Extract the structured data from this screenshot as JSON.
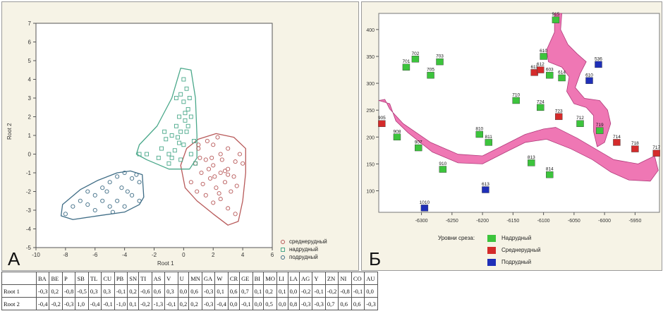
{
  "panel_a": {
    "letter": "А",
    "x_axis_title": "Root 1",
    "y_axis_title": "Root 2",
    "legend": [
      {
        "label": "среднерудный",
        "color": "#b85a5a",
        "marker": "circle"
      },
      {
        "label": "надрудный",
        "color": "#4aa88a",
        "marker": "square"
      },
      {
        "label": "подрудный",
        "color": "#3f6d86",
        "marker": "circle"
      }
    ]
  },
  "chart_data": {
    "type": "scatter",
    "xlabel": "Root 1",
    "ylabel": "Root 2",
    "xlim": [
      -10,
      6
    ],
    "ylim": [
      -5,
      7
    ],
    "x_ticks": [
      "-10",
      "-8",
      "-6",
      "-4",
      "-2",
      "0",
      "2",
      "4",
      "6"
    ],
    "y_ticks": [
      "-5",
      "-4",
      "-3",
      "-2",
      "-1",
      "0",
      "1",
      "2",
      "3",
      "4",
      "5",
      "6",
      "7"
    ],
    "series": [
      {
        "name": "среднерудный",
        "color": "#b85a5a",
        "marker": "circle",
        "points": [
          [
            0.5,
            -1.5
          ],
          [
            1.0,
            0.3
          ],
          [
            1.5,
            -0.3
          ],
          [
            2.0,
            -0.6
          ],
          [
            2.5,
            0.0
          ],
          [
            3.0,
            -0.8
          ],
          [
            3.5,
            -0.4
          ],
          [
            1.2,
            -1.0
          ],
          [
            1.8,
            -1.3
          ],
          [
            2.2,
            -1.8
          ],
          [
            2.8,
            -1.5
          ],
          [
            3.2,
            -2.0
          ],
          [
            0.8,
            -0.5
          ],
          [
            2.0,
            0.5
          ],
          [
            3.0,
            0.3
          ],
          [
            3.8,
            0.0
          ],
          [
            4.0,
            -0.5
          ],
          [
            2.5,
            -1.0
          ],
          [
            1.5,
            -2.2
          ],
          [
            2.0,
            -2.6
          ],
          [
            2.5,
            -2.4
          ],
          [
            3.0,
            -2.9
          ],
          [
            3.5,
            -3.2
          ],
          [
            1.0,
            0.5
          ],
          [
            1.6,
            0.7
          ],
          [
            2.6,
            -0.3
          ],
          [
            3.4,
            -1.2
          ],
          [
            1.9,
            -0.2
          ],
          [
            0.9,
            -2.0
          ],
          [
            1.3,
            -1.6
          ],
          [
            2.4,
            -2.1
          ],
          [
            3.6,
            -1.7
          ],
          [
            2.8,
            -0.9
          ],
          [
            1.1,
            -0.2
          ],
          [
            2.1,
            -1.2
          ],
          [
            3.0,
            -1.1
          ],
          [
            2.3,
            0.9
          ],
          [
            1.7,
            -0.8
          ]
        ]
      },
      {
        "name": "надрудный",
        "color": "#4aa88a",
        "marker": "square",
        "points": [
          [
            0.0,
            4.0
          ],
          [
            0.2,
            3.5
          ],
          [
            -0.2,
            3.2
          ],
          [
            0.0,
            2.8
          ],
          [
            0.3,
            2.4
          ],
          [
            -0.3,
            2.0
          ],
          [
            0.1,
            1.8
          ],
          [
            -0.5,
            1.5
          ],
          [
            0.2,
            1.2
          ],
          [
            -0.8,
            1.0
          ],
          [
            -1.2,
            0.8
          ],
          [
            -0.3,
            0.6
          ],
          [
            0.0,
            0.5
          ],
          [
            -1.5,
            0.3
          ],
          [
            -0.6,
            0.2
          ],
          [
            -1.0,
            0.0
          ],
          [
            0.5,
            0.0
          ],
          [
            -2.5,
            0.0
          ],
          [
            -3.0,
            0.0
          ],
          [
            -0.2,
            -0.3
          ],
          [
            0.8,
            -0.5
          ],
          [
            -1.0,
            -0.5
          ],
          [
            -1.3,
            1.2
          ],
          [
            0.5,
            2.0
          ],
          [
            -0.5,
            3.0
          ],
          [
            0.3,
            1.5
          ],
          [
            -0.8,
            -0.2
          ],
          [
            -0.2,
            1.2
          ],
          [
            0.7,
            0.7
          ],
          [
            -1.7,
            -0.2
          ],
          [
            0.1,
            2.2
          ],
          [
            -0.4,
            0.9
          ],
          [
            0.4,
            3.0
          ]
        ]
      },
      {
        "name": "подрудный",
        "color": "#3f6d86",
        "marker": "circle",
        "points": [
          [
            -8.0,
            -3.2
          ],
          [
            -7.5,
            -2.8
          ],
          [
            -7.0,
            -2.5
          ],
          [
            -6.5,
            -2.0
          ],
          [
            -6.0,
            -2.2
          ],
          [
            -5.5,
            -1.8
          ],
          [
            -5.0,
            -1.5
          ],
          [
            -4.5,
            -1.2
          ],
          [
            -4.0,
            -1.0
          ],
          [
            -3.5,
            -1.3
          ],
          [
            -3.0,
            -1.5
          ],
          [
            -6.0,
            -3.0
          ],
          [
            -5.0,
            -2.8
          ],
          [
            -4.5,
            -2.5
          ],
          [
            -4.0,
            -2.8
          ],
          [
            -3.5,
            -2.2
          ],
          [
            -3.0,
            -2.5
          ],
          [
            -5.5,
            -2.5
          ],
          [
            -6.5,
            -2.7
          ],
          [
            -4.2,
            -1.8
          ],
          [
            -3.8,
            -2.0
          ],
          [
            -5.2,
            -2.0
          ],
          [
            -3.2,
            -1.1
          ],
          [
            -4.8,
            -3.1
          ]
        ]
      }
    ],
    "hulls": [
      {
        "name": "среднерудный",
        "color": "#b85a5a",
        "points": [
          [
            -0.2,
            -0.6
          ],
          [
            0.2,
            0.3
          ],
          [
            1.0,
            0.8
          ],
          [
            2.2,
            1.1
          ],
          [
            3.4,
            0.9
          ],
          [
            4.2,
            0.3
          ],
          [
            4.2,
            -1.0
          ],
          [
            4.0,
            -2.5
          ],
          [
            3.7,
            -3.6
          ],
          [
            3.0,
            -3.8
          ],
          [
            2.0,
            -3.2
          ],
          [
            0.9,
            -2.5
          ],
          [
            0.1,
            -1.8
          ]
        ]
      },
      {
        "name": "надрудный",
        "color": "#4aa88a",
        "points": [
          [
            -0.2,
            4.6
          ],
          [
            0.5,
            4.5
          ],
          [
            0.8,
            3.0
          ],
          [
            0.9,
            1.0
          ],
          [
            0.9,
            -0.2
          ],
          [
            0.4,
            -0.8
          ],
          [
            -1.0,
            -0.8
          ],
          [
            -2.5,
            -0.3
          ],
          [
            -3.2,
            0.0
          ],
          [
            -3.0,
            0.5
          ],
          [
            -1.8,
            1.5
          ],
          [
            -0.8,
            3.0
          ]
        ]
      },
      {
        "name": "подрудный",
        "color": "#3f6d86",
        "points": [
          [
            -8.3,
            -3.3
          ],
          [
            -8.2,
            -2.7
          ],
          [
            -7.0,
            -1.9
          ],
          [
            -5.8,
            -1.4
          ],
          [
            -4.5,
            -1.0
          ],
          [
            -3.6,
            -0.9
          ],
          [
            -2.8,
            -1.1
          ],
          [
            -2.7,
            -2.3
          ],
          [
            -3.0,
            -2.7
          ],
          [
            -4.0,
            -3.1
          ],
          [
            -5.8,
            -3.3
          ],
          [
            -7.5,
            -3.5
          ]
        ]
      }
    ]
  },
  "panel_b": {
    "letter": "Б",
    "legend_title": "Уровни среза:",
    "legend": [
      {
        "label": "Надрудный",
        "color": "#3cc43c"
      },
      {
        "label": "Среднерудный",
        "color": "#d42b2b"
      },
      {
        "label": "Подрудный",
        "color": "#1f2fb8"
      }
    ],
    "map": {
      "xlim": [
        -6370,
        -5910
      ],
      "ylim": [
        60,
        430
      ],
      "x_ticks": [
        "-6300",
        "-6250",
        "-6200",
        "-6150",
        "-6100",
        "-6050",
        "-6000",
        "-5950"
      ],
      "y_ticks": [
        "100",
        "150",
        "200",
        "250",
        "300",
        "350",
        "400"
      ],
      "samples": [
        {
          "id": "915",
          "x": -6080,
          "y": 418,
          "level": "Надрудный"
        },
        {
          "id": "701",
          "x": -6325,
          "y": 330,
          "level": "Надрудный"
        },
        {
          "id": "702",
          "x": -6310,
          "y": 345,
          "level": "Надрудный"
        },
        {
          "id": "703",
          "x": -6270,
          "y": 340,
          "level": "Надрудный"
        },
        {
          "id": "705",
          "x": -6285,
          "y": 315,
          "level": "Надрудный"
        },
        {
          "id": "610",
          "x": -6100,
          "y": 350,
          "level": "Надрудный"
        },
        {
          "id": "611",
          "x": -6115,
          "y": 320,
          "level": "Среднерудный"
        },
        {
          "id": "612",
          "x": -6105,
          "y": 325,
          "level": "Среднерудный"
        },
        {
          "id": "603",
          "x": -6090,
          "y": 315,
          "level": "Надрудный"
        },
        {
          "id": "614",
          "x": -6070,
          "y": 310,
          "level": "Надрудный"
        },
        {
          "id": "536",
          "x": -6010,
          "y": 335,
          "level": "Подрудный"
        },
        {
          "id": "610",
          "x": -6025,
          "y": 305,
          "level": "Подрудный"
        },
        {
          "id": "710",
          "x": -6145,
          "y": 268,
          "level": "Надрудный"
        },
        {
          "id": "724",
          "x": -6105,
          "y": 255,
          "level": "Надрудный"
        },
        {
          "id": "723",
          "x": -6075,
          "y": 238,
          "level": "Среднерудный"
        },
        {
          "id": "712",
          "x": -6040,
          "y": 225,
          "level": "Надрудный"
        },
        {
          "id": "719",
          "x": -6008,
          "y": 212,
          "level": "Надрудный"
        },
        {
          "id": "714",
          "x": -5980,
          "y": 190,
          "level": "Среднерудный"
        },
        {
          "id": "718",
          "x": -5950,
          "y": 178,
          "level": "Среднерудный"
        },
        {
          "id": "717",
          "x": -5915,
          "y": 170,
          "level": "Среднерудный"
        },
        {
          "id": "905",
          "x": -6365,
          "y": 225,
          "level": "Среднерудный"
        },
        {
          "id": "908",
          "x": -6340,
          "y": 200,
          "level": "Надрудный"
        },
        {
          "id": "907",
          "x": -6305,
          "y": 180,
          "level": "Надрудный"
        },
        {
          "id": "910",
          "x": -6265,
          "y": 140,
          "level": "Надрудный"
        },
        {
          "id": "810",
          "x": -6205,
          "y": 205,
          "level": "Надрудный"
        },
        {
          "id": "811",
          "x": -6190,
          "y": 190,
          "level": "Надрудный"
        },
        {
          "id": "813",
          "x": -6120,
          "y": 152,
          "level": "Надрудный"
        },
        {
          "id": "814",
          "x": -6090,
          "y": 130,
          "level": "Надрудный"
        },
        {
          "id": "613",
          "x": -6195,
          "y": 102,
          "level": "Подрудный"
        },
        {
          "id": "1010",
          "x": -6295,
          "y": 68,
          "level": "Подрудный"
        }
      ]
    }
  },
  "table": {
    "headers": [
      "",
      "BA",
      "BE",
      "P",
      "SB",
      "TL",
      "CU",
      "PB",
      "SN",
      "TI",
      "AS",
      "V",
      "U",
      "MN",
      "GA",
      "W",
      "CR",
      "GE",
      "BI",
      "MO",
      "LI",
      "LA",
      "AG",
      "Y",
      "ZN",
      "NI",
      "CO",
      "AU"
    ],
    "rows": [
      [
        "Root 1",
        "-0,3",
        "0,2",
        "-0,8",
        "-0,5",
        "0,3",
        "0,3",
        "-0,1",
        "0,2",
        "-0,6",
        "0,6",
        "0,3",
        "0,0",
        "0,6",
        "-0,3",
        "0,1",
        "0,6",
        "0,7",
        "0,1",
        "0,2",
        "0,1",
        "0,0",
        "-0,2",
        "-0,1",
        "-0,2",
        "-0,8",
        "-0,1",
        "0,0"
      ],
      [
        "Root 2",
        "-0,4",
        "-0,2",
        "-0,3",
        "1,0",
        "-0,4",
        "-0,1",
        "-1,0",
        "0,1",
        "-0,2",
        "-1,3",
        "-0,1",
        "0,2",
        "0,2",
        "-0,3",
        "-0,4",
        "0,0",
        "-0,1",
        "0,0",
        "0,5",
        "0,0",
        "0,8",
        "-0,3",
        "-0,3",
        "0,7",
        "0,6",
        "0,6",
        "-0,3"
      ]
    ]
  }
}
